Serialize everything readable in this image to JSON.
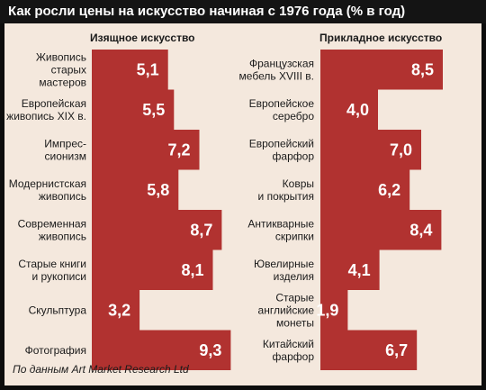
{
  "colors": {
    "bar": "#b13230",
    "background": "#f4e8dd",
    "title_bg": "#141414",
    "title_text": "#ffffff"
  },
  "title": "Как росли цены на искусство начиная с 1976 года (% в год)",
  "source": "По данным Art Market Research Ltd",
  "chart_data": [
    {
      "type": "bar",
      "orientation": "horizontal",
      "title": "Изящное искусство",
      "categories": [
        [
          "Живопись",
          "старых",
          "мастеров"
        ],
        [
          "Европейская",
          "живопись XIX в."
        ],
        [
          "Импрес-",
          "сионизм"
        ],
        [
          "Модернистская",
          "живопись"
        ],
        [
          "Современная",
          "живопись"
        ],
        [
          "Старые книги",
          "и рукописи"
        ],
        [
          "Скульптура"
        ],
        [
          "Фотография"
        ]
      ],
      "values": [
        5.1,
        5.5,
        7.2,
        5.8,
        8.7,
        8.1,
        3.2,
        9.3
      ],
      "value_labels": [
        "5,1",
        "5,5",
        "7,2",
        "5,8",
        "8,7",
        "8,1",
        "3,2",
        "9,3"
      ]
    },
    {
      "type": "bar",
      "orientation": "horizontal",
      "title": "Прикладное искусство",
      "categories": [
        [
          "Французская",
          "мебель XVIII в."
        ],
        [
          "Европейское",
          "серебро"
        ],
        [
          "Европейский",
          "фарфор"
        ],
        [
          "Ковры",
          "и покрытия"
        ],
        [
          "Антикварные",
          "скрипки"
        ],
        [
          "Ювелирные",
          "изделия"
        ],
        [
          "Старые",
          "английские",
          "монеты"
        ],
        [
          "Китайский",
          "фарфор"
        ]
      ],
      "values": [
        8.5,
        4.0,
        7.0,
        6.2,
        8.4,
        4.1,
        1.9,
        6.7
      ],
      "value_labels": [
        "8,5",
        "4,0",
        "7,0",
        "6,2",
        "8,4",
        "4,1",
        "1,9",
        "6,7"
      ]
    }
  ]
}
